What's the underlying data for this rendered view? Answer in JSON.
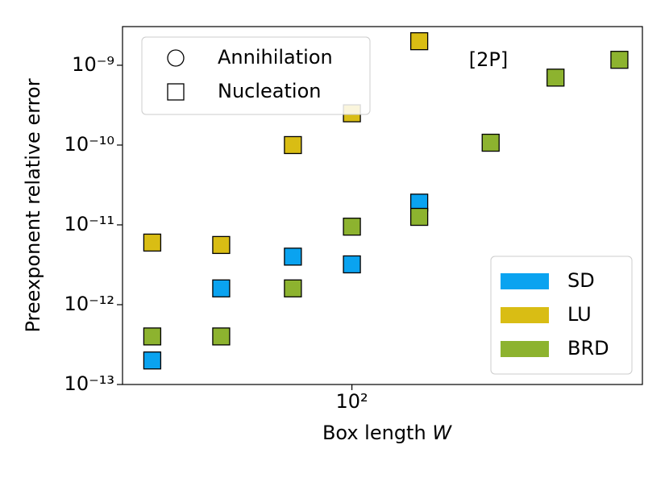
{
  "chart_data": {
    "type": "scatter",
    "ylabel": "Preexponent relative error",
    "xlabel": "Box length W",
    "annotation": "[2P]",
    "xscale": "log",
    "yscale": "log",
    "xlim": [
      42,
      300
    ],
    "ylim": [
      1e-13,
      3.05e-09
    ],
    "xticks": [
      {
        "value": 100,
        "label": "10²"
      }
    ],
    "yticks": [
      {
        "value": 1e-13,
        "label": "10⁻¹³"
      },
      {
        "value": 1e-12,
        "label": "10⁻¹²"
      },
      {
        "value": 1e-11,
        "label": "10⁻¹¹"
      },
      {
        "value": 1e-10,
        "label": "10⁻¹⁰"
      },
      {
        "value": 1e-09,
        "label": "10⁻⁹"
      }
    ],
    "marker_legend": [
      {
        "label": "Annihilation",
        "marker": "circle"
      },
      {
        "label": "Nucleation",
        "marker": "square"
      }
    ],
    "legend": "lower right",
    "marker": "square",
    "series": [
      {
        "name": "SD",
        "color": "#0aa3f0",
        "x": [
          47,
          61,
          80,
          100,
          129
        ],
        "values": [
          2e-13,
          1.6e-12,
          4e-12,
          3.2e-12,
          1.9e-11
        ]
      },
      {
        "name": "LU",
        "color": "#d9bd14",
        "x": [
          47,
          61,
          80,
          100,
          129
        ],
        "values": [
          6e-12,
          5.6e-12,
          1e-10,
          2.5e-10,
          2e-09
        ]
      },
      {
        "name": "BRD",
        "color": "#8db32f",
        "x": [
          47,
          61,
          80,
          100,
          129,
          169,
          216,
          275
        ],
        "values": [
          4e-13,
          4e-13,
          1.6e-12,
          9.5e-12,
          1.26e-11,
          1.07e-10,
          7e-10,
          1.17e-09
        ]
      }
    ]
  }
}
